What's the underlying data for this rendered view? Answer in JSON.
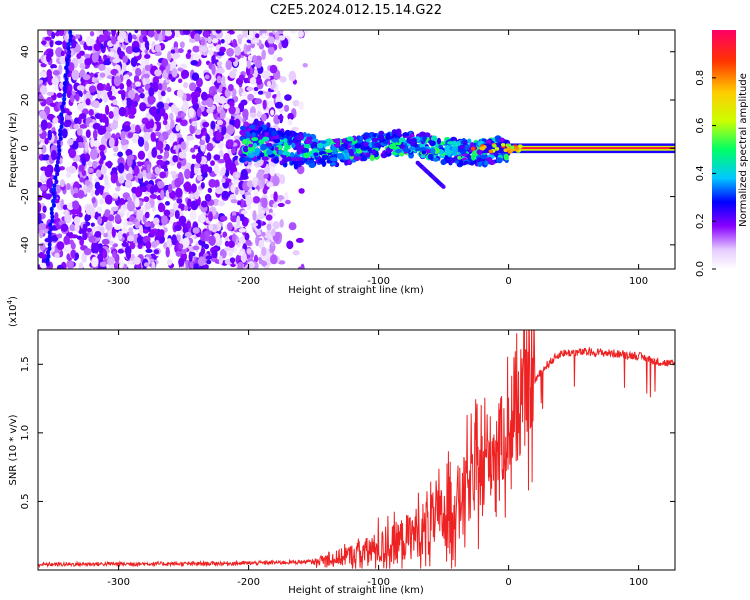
{
  "title": "C2E5.2024.012.15.14.G22",
  "chart_data": [
    {
      "type": "heatmap",
      "xlabel": "Height of straight line (km)",
      "ylabel": "Frequency (Hz)",
      "xlim": [
        -362,
        128
      ],
      "ylim": [
        -50,
        49
      ],
      "xticks": [
        -300,
        -200,
        -100,
        0,
        100
      ],
      "yticks": [
        -40,
        -20,
        0,
        20,
        40
      ],
      "colorbar": {
        "label": "Normalized spectral amplitude",
        "range": [
          0.0,
          1.0
        ],
        "ticks": [
          0.0,
          0.2,
          0.4,
          0.6,
          0.8
        ],
        "colormap": [
          "#ffffff",
          "#e6ccff",
          "#8800ff",
          "#0000ff",
          "#00c8ff",
          "#00ff66",
          "#ccff00",
          "#ffcc00",
          "#ff3300",
          "#ff0066"
        ]
      },
      "regions": [
        {
          "x": [
            -362,
            -175
          ],
          "y": [
            -50,
            49
          ],
          "amplitude": [
            0.05,
            0.35
          ],
          "description_of_values": "scattered low amplitude"
        },
        {
          "x": [
            -200,
            0
          ],
          "y": [
            -8,
            8
          ],
          "amplitude": [
            0.3,
            0.6
          ]
        },
        {
          "x": [
            0,
            128
          ],
          "y": [
            -1,
            1
          ],
          "amplitude": [
            0.7,
            1.0
          ]
        }
      ]
    },
    {
      "type": "line",
      "xlabel": "Height of straight line (km)",
      "ylabel": "SNR (10 * v/v)",
      "y_multiplier": "(x10^4)",
      "xlim": [
        -362,
        128
      ],
      "ylim": [
        0,
        1.75
      ],
      "xticks": [
        -300,
        -200,
        -100,
        0,
        100
      ],
      "yticks": [
        0.5,
        1.0,
        1.5
      ],
      "color": "#ee2222",
      "series": [
        {
          "x": [
            -362,
            -300,
            -250,
            -200,
            -150,
            -130,
            -110,
            -90,
            -70,
            -50,
            -40,
            -30,
            -20,
            -10,
            0,
            10,
            20,
            30,
            40,
            60,
            80,
            100,
            110,
            120,
            128
          ],
          "y": [
            0.04,
            0.045,
            0.045,
            0.05,
            0.06,
            0.09,
            0.13,
            0.18,
            0.28,
            0.4,
            0.5,
            0.62,
            0.75,
            0.9,
            1.0,
            1.2,
            1.38,
            1.5,
            1.58,
            1.59,
            1.58,
            1.56,
            1.53,
            1.51,
            1.5
          ]
        }
      ]
    }
  ],
  "labels": {
    "top_xlabel": "Height of straight line (km)",
    "top_ylabel": "Frequency (Hz)",
    "bottom_xlabel": "Height of straight line (km)",
    "bottom_ylabel": "SNR (10 * v/v)",
    "multiplier_base": "(x10",
    "multiplier_exp": "4",
    "multiplier_close": ")",
    "colorbar_label": "Normalized spectral amplitude"
  },
  "tick_labels": {
    "x": [
      "-300",
      "-200",
      "-100",
      "0",
      "100"
    ],
    "freq": [
      "-40",
      "-20",
      "0",
      "20",
      "40"
    ],
    "snr": [
      "0.5",
      "1.0",
      "1.5"
    ],
    "cbar": [
      "0.0",
      "0.2",
      "0.4",
      "0.6",
      "0.8"
    ]
  }
}
